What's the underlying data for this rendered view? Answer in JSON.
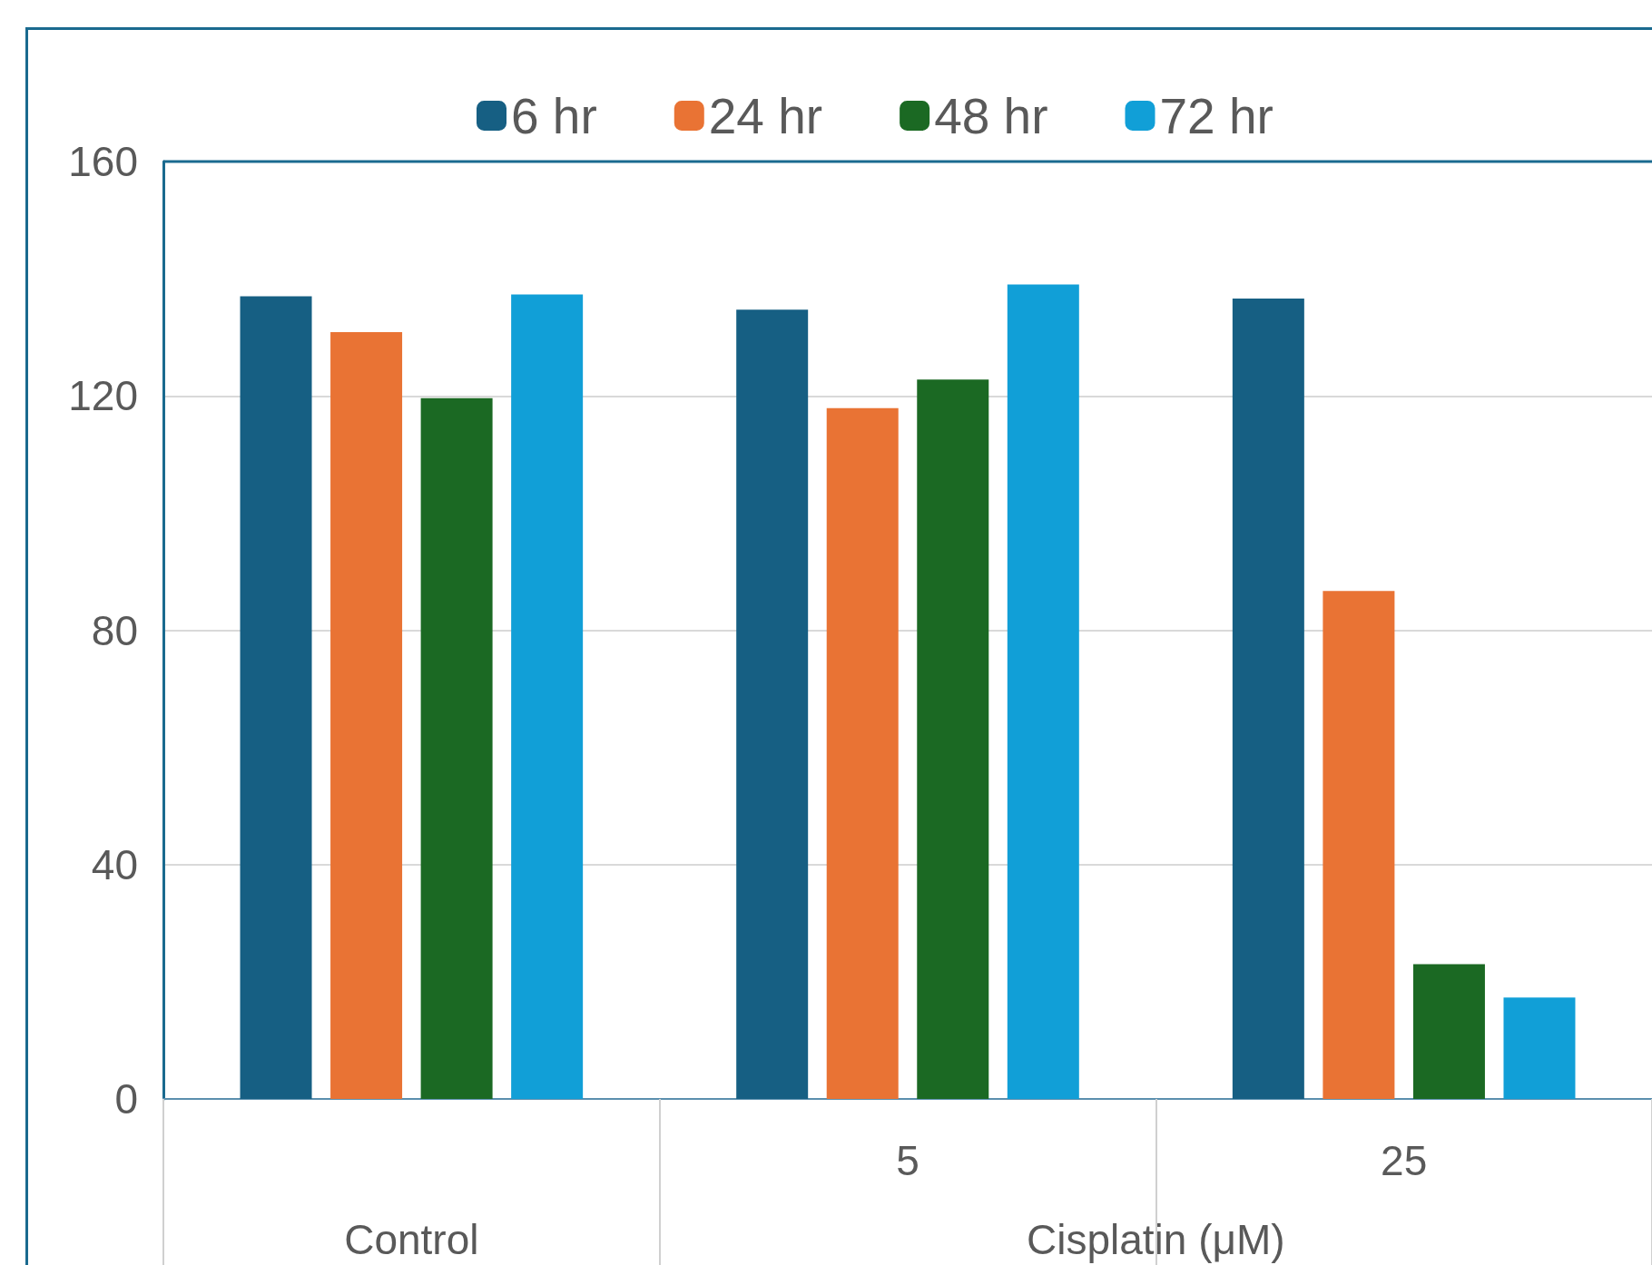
{
  "chart_data": {
    "type": "bar",
    "categories": [
      null,
      "5",
      "25"
    ],
    "annotations": [
      "Control",
      "Cisplatin (μM)"
    ],
    "series": [
      {
        "name": "6 hr",
        "color": "#165f83",
        "values": [
          137.0,
          134.7,
          136.6
        ]
      },
      {
        "name": "24 hr",
        "color": "#e97334",
        "values": [
          130.9,
          117.9,
          86.7
        ]
      },
      {
        "name": "48 hr",
        "color": "#1b6923",
        "values": [
          119.6,
          122.8,
          23.0
        ]
      },
      {
        "name": "72 hr",
        "color": "#119fd7",
        "values": [
          137.3,
          139.0,
          17.3
        ]
      }
    ],
    "ylim": [
      0,
      160
    ],
    "yticks": [
      0,
      40,
      80,
      120,
      160
    ],
    "grid": "y",
    "legend": "top"
  }
}
